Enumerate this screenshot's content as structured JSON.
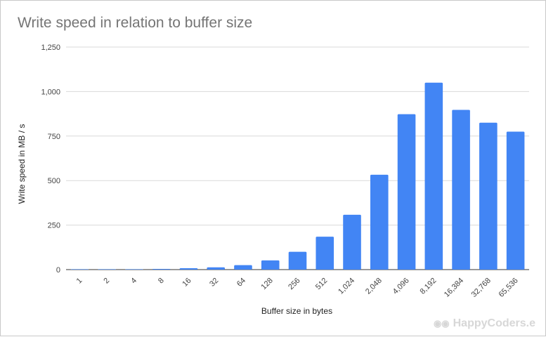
{
  "chart_data": {
    "type": "bar",
    "title": "Write speed in relation to buffer size",
    "xlabel": "Buffer size in bytes",
    "ylabel": "Write speed in MB / s",
    "categories": [
      "1",
      "2",
      "4",
      "8",
      "16",
      "32",
      "64",
      "128",
      "256",
      "512",
      "1,024",
      "2,048",
      "4,096",
      "8,192",
      "16,384",
      "32,768",
      "65,536"
    ],
    "values": [
      0.5,
      1,
      2,
      4,
      8,
      13,
      25,
      52,
      100,
      185,
      308,
      533,
      873,
      1050,
      897,
      825,
      775
    ],
    "y_ticks": [
      "0",
      "250",
      "500",
      "750",
      "1,000",
      "1,250"
    ],
    "ylim": [
      0,
      1250
    ],
    "grid": true,
    "legend": "none",
    "bar_color": "#4285f4"
  },
  "watermark": {
    "text": "HappyCoders.e",
    "icon": "glasses-face-icon"
  }
}
